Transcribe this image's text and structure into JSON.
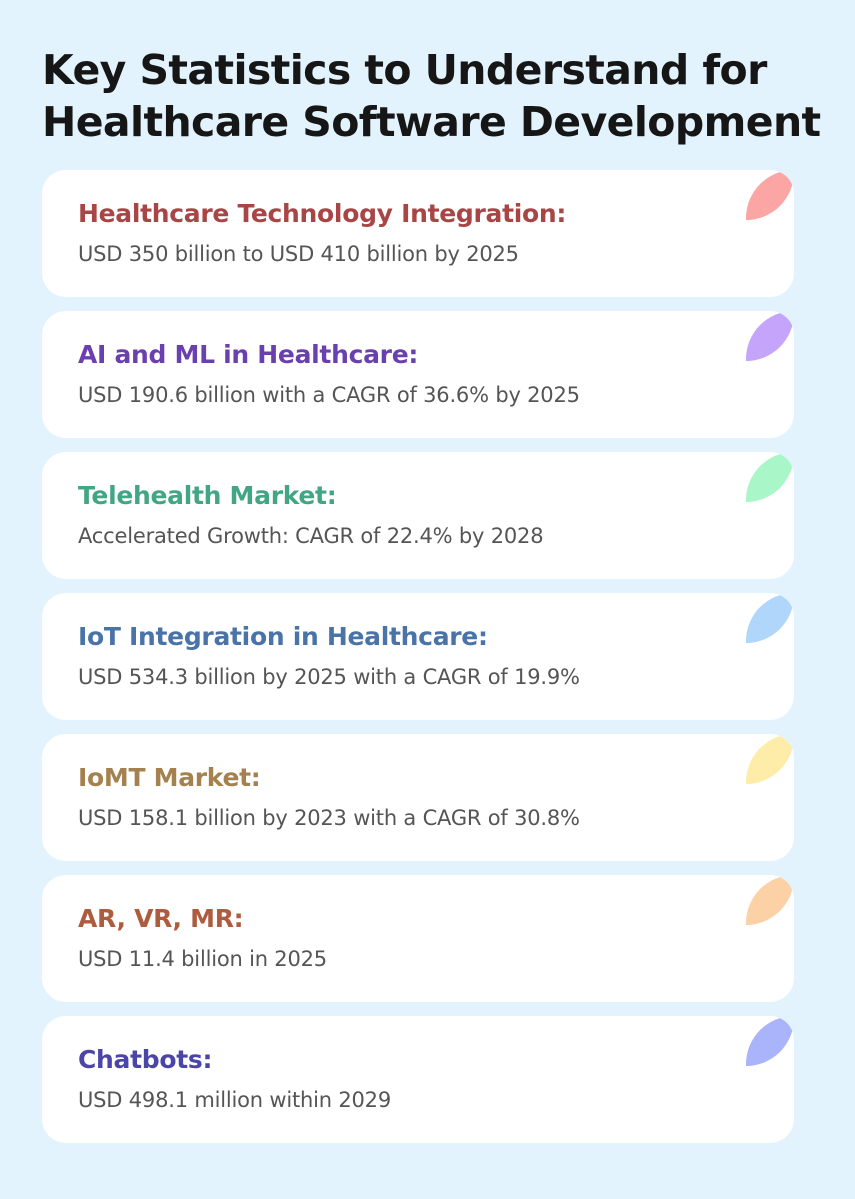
{
  "title": "Key Statistics to Understand for Healthcare Software Development",
  "stats": [
    {
      "heading": "Healthcare Technology Integration:",
      "text": "USD 350 billion to USD 410 billion by 2025",
      "heading_color": "#a84545",
      "accent_color": "#fca5a5"
    },
    {
      "heading": "AI and ML in Healthcare:",
      "text": "USD 190.6 billion with a CAGR of 36.6% by 2025",
      "heading_color": "#6a3fb0",
      "accent_color": "#c4a5fb"
    },
    {
      "heading": "Telehealth Market:",
      "text": "Accelerated Growth: CAGR of 22.4% by 2028",
      "heading_color": "#42a583",
      "accent_color": "#a9f7c8"
    },
    {
      "heading": "IoT Integration in Healthcare:",
      "text": "USD 534.3 billion by 2025 with a CAGR of 19.9%",
      "heading_color": "#4a73a8",
      "accent_color": "#b0d6fc"
    },
    {
      "heading": "IoMT Market:",
      "text": "USD 158.1 billion by 2023 with a CAGR of 30.8%",
      "heading_color": "#a4814e",
      "accent_color": "#fdeda8"
    },
    {
      "heading": "AR, VR, MR:",
      "text": "USD 11.4 billion in 2025",
      "heading_color": "#ad5c3e",
      "accent_color": "#fdd1a6"
    },
    {
      "heading": "Chatbots:",
      "text": "USD 498.1 million within 2029",
      "heading_color": "#4a45a6",
      "accent_color": "#a9b4fa"
    }
  ]
}
